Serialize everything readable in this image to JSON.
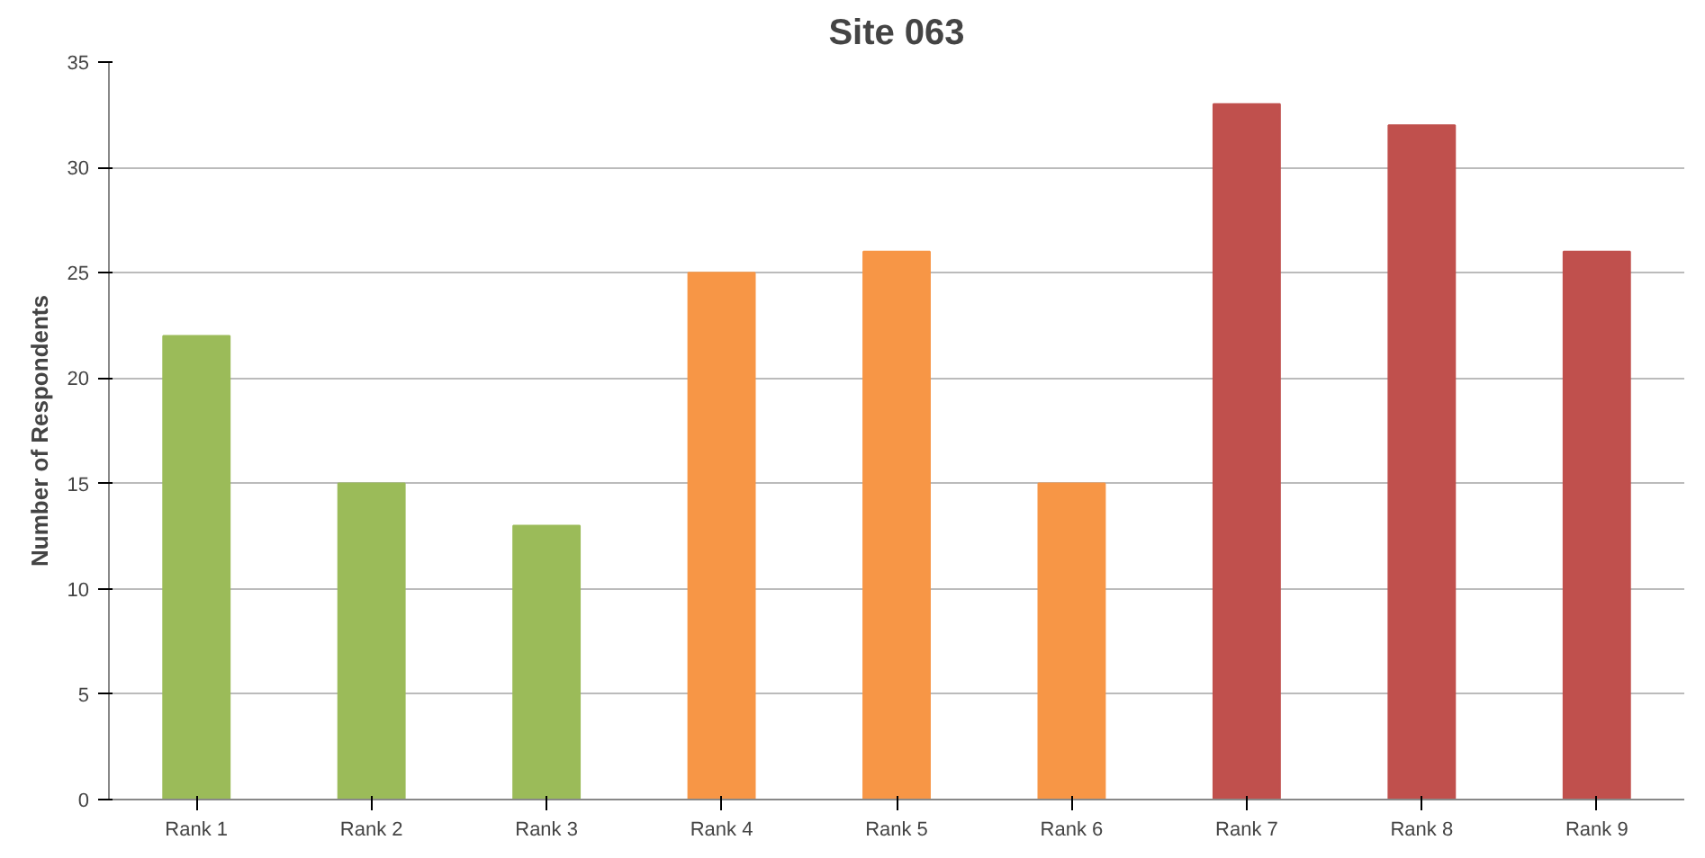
{
  "chart_data": {
    "type": "bar",
    "title": "Site 063",
    "ylabel": "Number of Respondents",
    "categories": [
      "Rank 1",
      "Rank 2",
      "Rank 3",
      "Rank 4",
      "Rank 5",
      "Rank 6",
      "Rank 7",
      "Rank 8",
      "Rank 9"
    ],
    "values": [
      22,
      15,
      13,
      25,
      26,
      15,
      33,
      32,
      26
    ],
    "colors": [
      "#9bbb59",
      "#9bbb59",
      "#9bbb59",
      "#f79646",
      "#f79646",
      "#f79646",
      "#c0504d",
      "#c0504d",
      "#c0504d"
    ],
    "ylim": [
      0,
      35
    ],
    "yticks": [
      0,
      5,
      10,
      15,
      20,
      25,
      30,
      35
    ],
    "grid": "y"
  }
}
